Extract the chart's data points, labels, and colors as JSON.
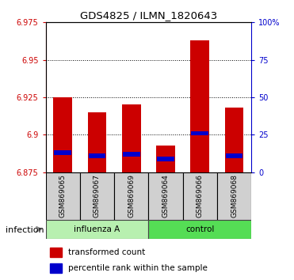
{
  "title": "GDS4825 / ILMN_1820643",
  "samples": [
    "GSM869065",
    "GSM869067",
    "GSM869069",
    "GSM869064",
    "GSM869066",
    "GSM869068"
  ],
  "transformed_counts": [
    6.925,
    6.915,
    6.92,
    6.893,
    6.963,
    6.918
  ],
  "percentile_values": [
    6.888,
    6.886,
    6.887,
    6.884,
    6.901,
    6.886
  ],
  "bar_bottom": 6.875,
  "ylim_left": [
    6.875,
    6.975
  ],
  "yticks_left": [
    6.875,
    6.9,
    6.925,
    6.95,
    6.975
  ],
  "yticks_right": [
    0,
    25,
    50,
    75,
    100
  ],
  "ytick_left_color": "#cc0000",
  "ytick_right_color": "#0000cc",
  "bar_color": "#cc0000",
  "percentile_color": "#0000cc",
  "bar_width": 0.55,
  "percentile_bar_width": 0.5,
  "percentile_bar_height": 0.003,
  "influenza_color": "#b8f0b0",
  "control_color": "#55dd55",
  "label_box_color": "#d0d0d0",
  "infection_label": "infection",
  "legend_items": [
    "transformed count",
    "percentile rank within the sample"
  ],
  "grid_yticks": [
    6.9,
    6.925,
    6.95
  ]
}
